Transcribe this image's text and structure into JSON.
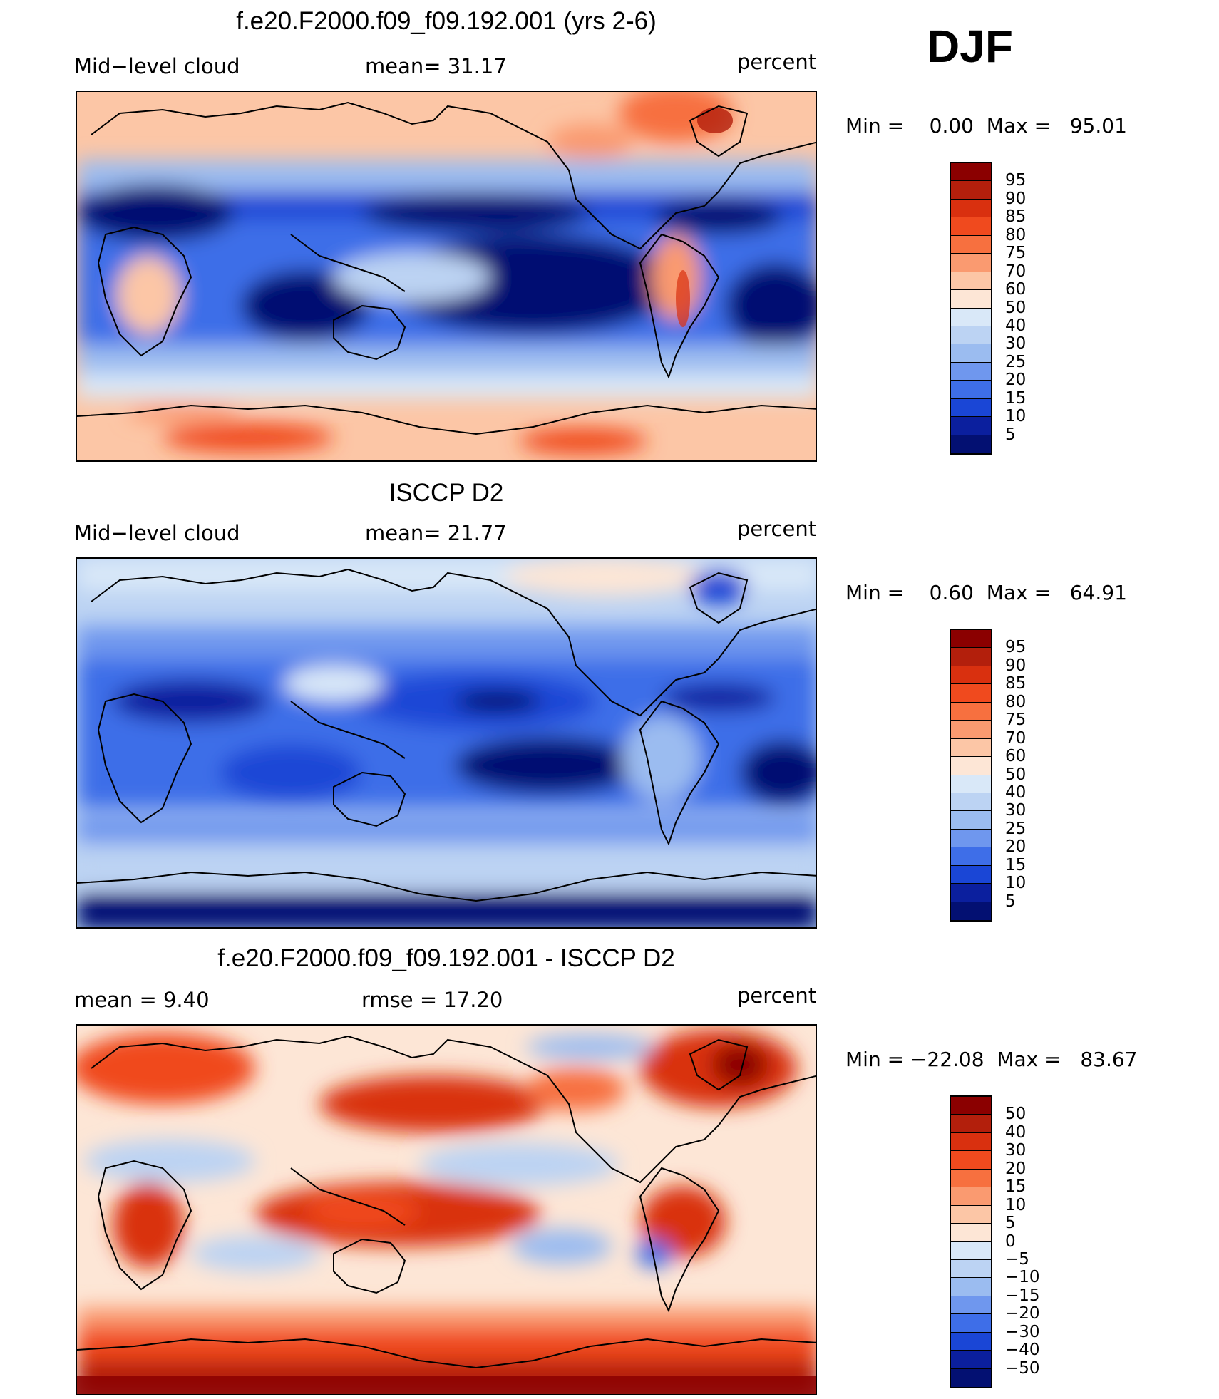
{
  "season": "DJF",
  "panels": [
    {
      "title": "f.e20.F2000.f09_f09.192.001 (yrs 2-6)",
      "left_label": "Mid−level cloud",
      "mid_label": "mean=   31.17",
      "right_label": "percent",
      "stats": "Min =    0.00  Max =   95.01",
      "colorbar": {
        "labels": [
          "95",
          "90",
          "85",
          "80",
          "75",
          "70",
          "60",
          "50",
          "40",
          "30",
          "25",
          "20",
          "15",
          "10",
          "5"
        ],
        "colors": [
          "#8b0000",
          "#b31f0c",
          "#d9300f",
          "#f04a1e",
          "#f7703f",
          "#fa9a70",
          "#fcc6a6",
          "#fde6d6",
          "#d9e8f8",
          "#bcd3f3",
          "#9bbcf0",
          "#6f97ee",
          "#3e6ee8",
          "#1a46d6",
          "#0b1f9e",
          "#031072"
        ]
      }
    },
    {
      "title": "ISCCP D2",
      "left_label": "Mid−level cloud",
      "mid_label": "mean=   21.77",
      "right_label": "percent",
      "stats": "Min =    0.60  Max =   64.91",
      "colorbar": {
        "labels": [
          "95",
          "90",
          "85",
          "80",
          "75",
          "70",
          "60",
          "50",
          "40",
          "30",
          "25",
          "20",
          "15",
          "10",
          "5"
        ],
        "colors": [
          "#8b0000",
          "#b31f0c",
          "#d9300f",
          "#f04a1e",
          "#f7703f",
          "#fa9a70",
          "#fcc6a6",
          "#fde6d6",
          "#d9e8f8",
          "#bcd3f3",
          "#9bbcf0",
          "#6f97ee",
          "#3e6ee8",
          "#1a46d6",
          "#0b1f9e",
          "#031072"
        ]
      }
    },
    {
      "title": "f.e20.F2000.f09_f09.192.001 - ISCCP D2",
      "left_label": "mean =     9.40",
      "mid_label": "rmse =     17.20",
      "right_label": "percent",
      "stats": "Min = −22.08  Max =   83.67",
      "colorbar": {
        "labels": [
          "50",
          "40",
          "30",
          "20",
          "15",
          "10",
          "5",
          "0",
          "−5",
          "−10",
          "−15",
          "−20",
          "−30",
          "−40",
          "−50"
        ],
        "colors": [
          "#8b0000",
          "#b31f0c",
          "#d9300f",
          "#f04a1e",
          "#f7703f",
          "#fa9a70",
          "#fcc6a6",
          "#fde6d6",
          "#d9e8f8",
          "#bcd3f3",
          "#9bbcf0",
          "#6f97ee",
          "#3e6ee8",
          "#1a46d6",
          "#0b1f9e",
          "#031072"
        ]
      }
    }
  ]
}
